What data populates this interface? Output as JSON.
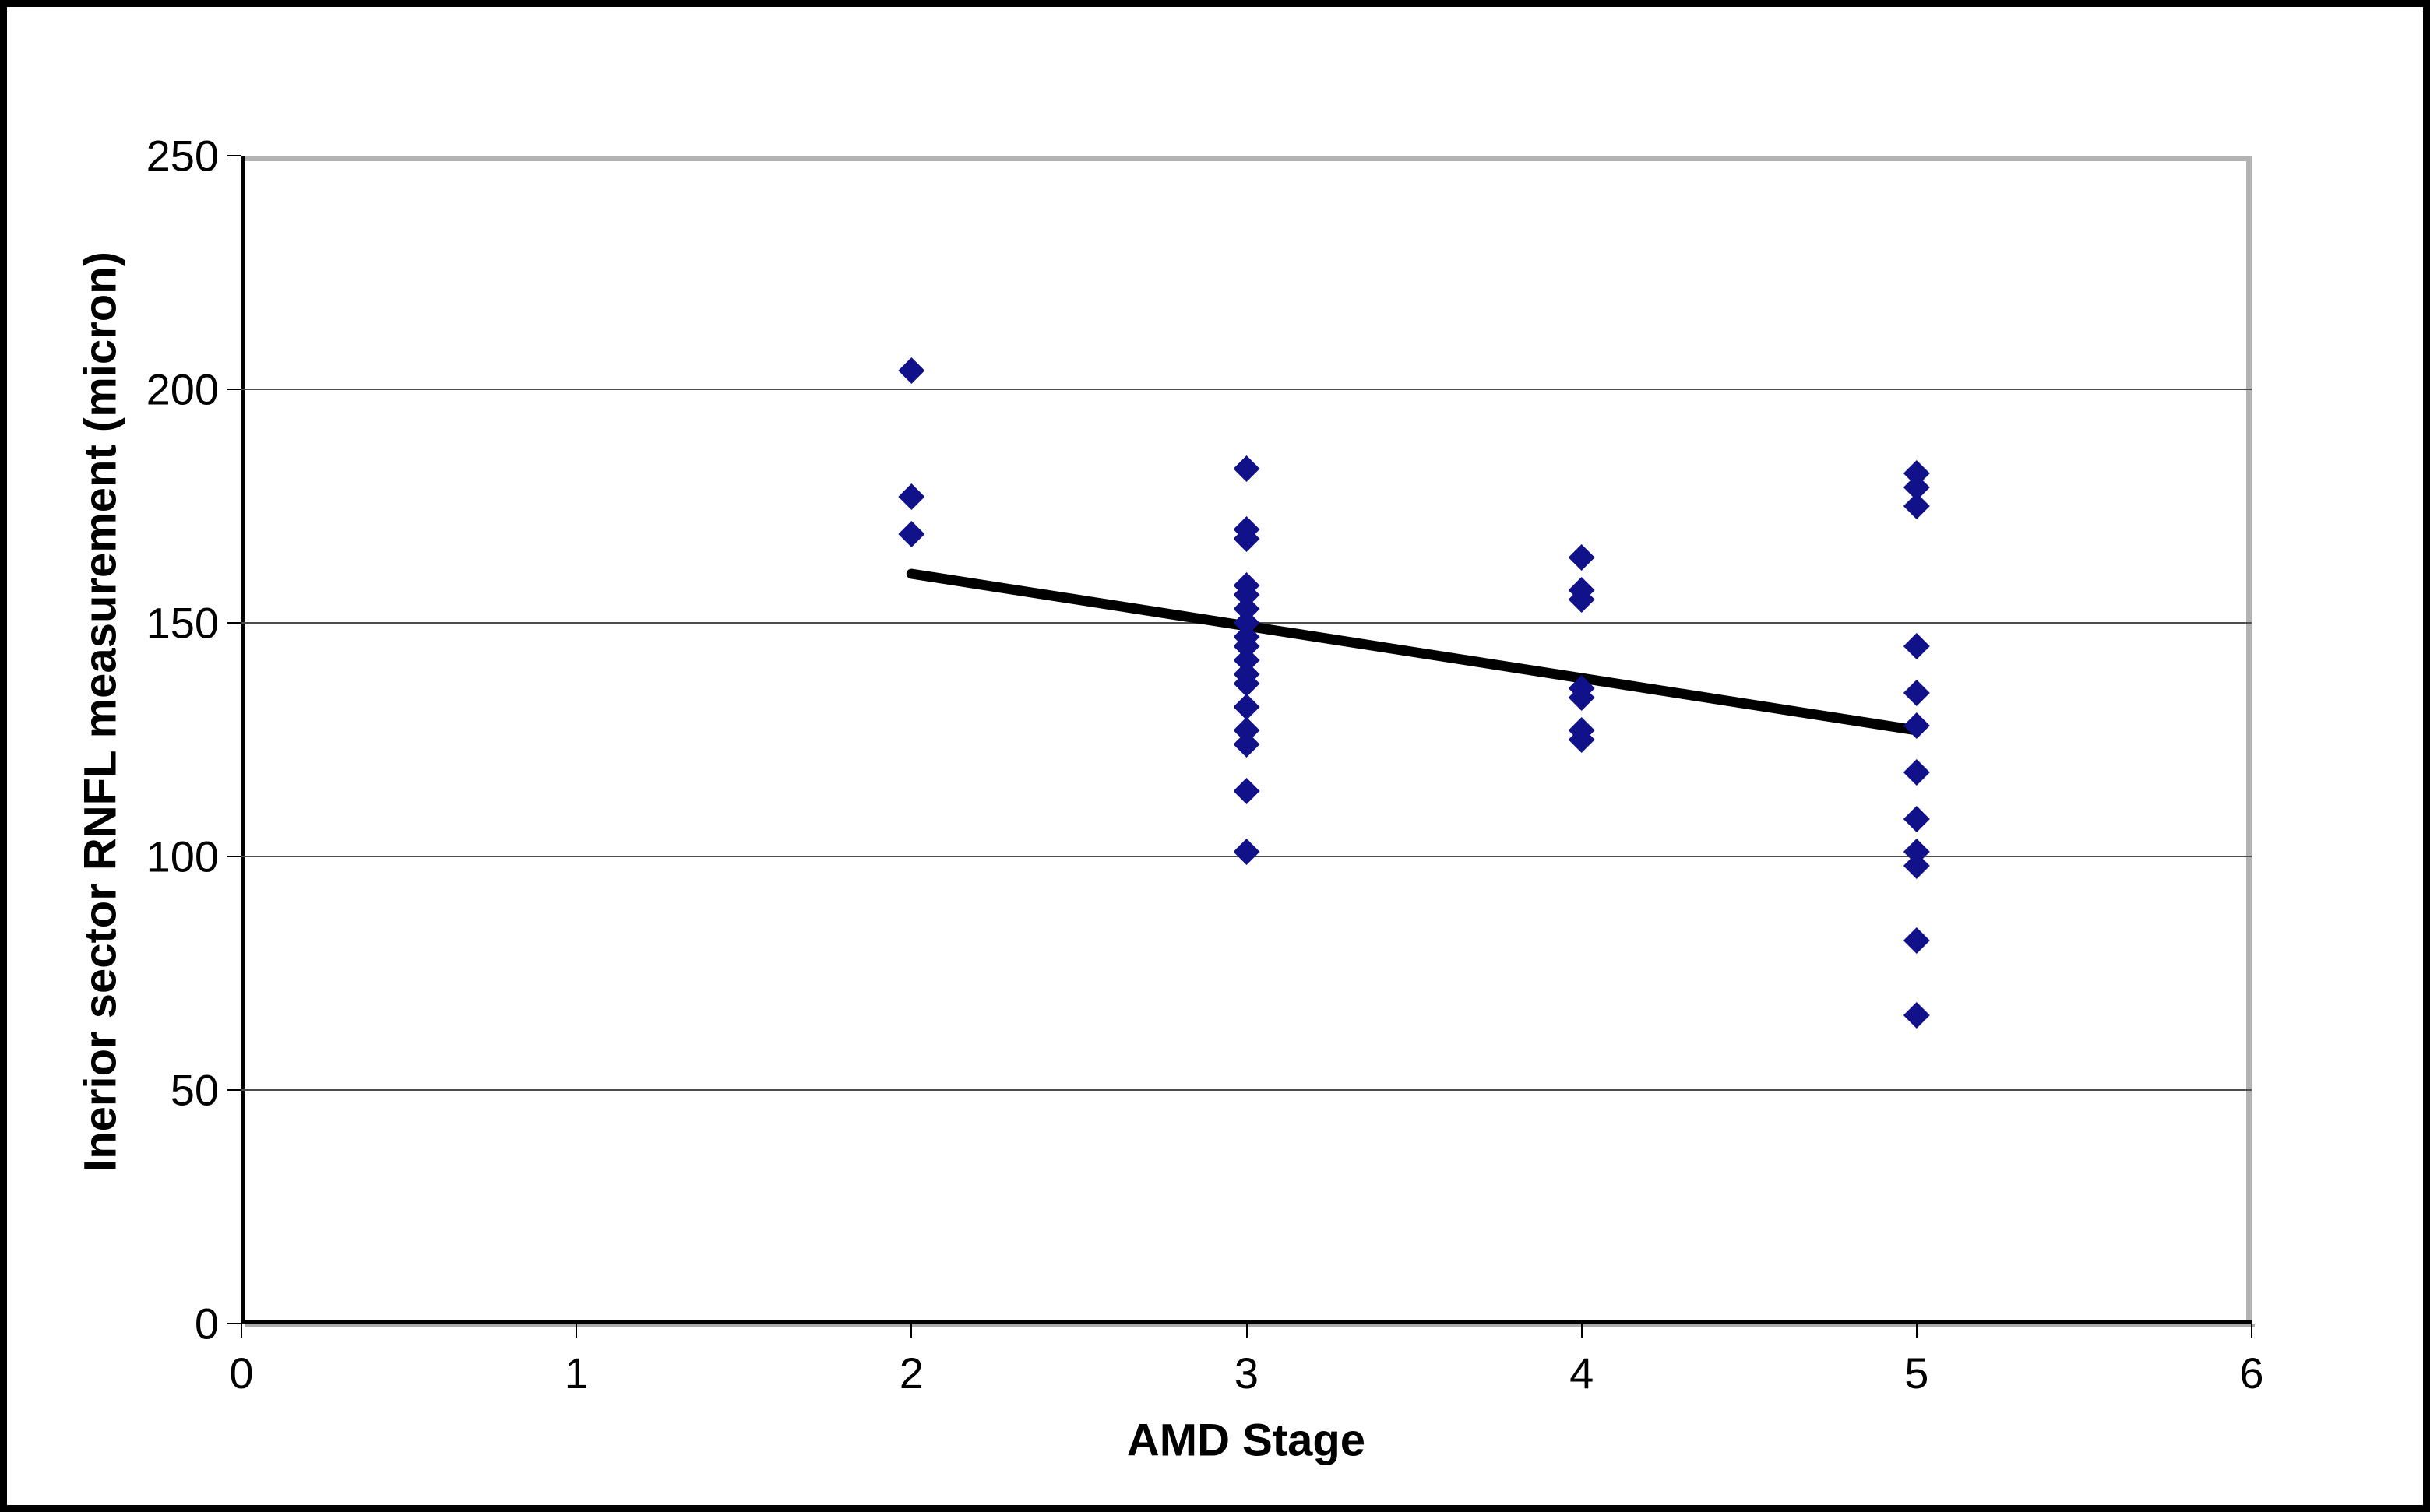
{
  "chart_data": {
    "type": "scatter",
    "title": "",
    "xlabel": "AMD Stage",
    "ylabel": "Inerior sector RNFL measurement (micron)",
    "xlim": [
      0,
      6
    ],
    "ylim": [
      0,
      250
    ],
    "x_ticks": [
      0,
      1,
      2,
      3,
      4,
      5,
      6
    ],
    "y_ticks": [
      0,
      50,
      100,
      150,
      200,
      250
    ],
    "grid": "horizontal",
    "legend": "none",
    "marker": "diamond",
    "marker_color": "#11118a",
    "gridline_color": "#4d4d4d",
    "plot_border_color": "#b3b3b3",
    "axis_color": "#000000",
    "points": [
      [
        2,
        204
      ],
      [
        2,
        177
      ],
      [
        2,
        169
      ],
      [
        3,
        183
      ],
      [
        3,
        170
      ],
      [
        3,
        168
      ],
      [
        3,
        158
      ],
      [
        3,
        156
      ],
      [
        3,
        153
      ],
      [
        3,
        150
      ],
      [
        3,
        147
      ],
      [
        3,
        145
      ],
      [
        3,
        142
      ],
      [
        3,
        139
      ],
      [
        3,
        137
      ],
      [
        3,
        132
      ],
      [
        3,
        127
      ],
      [
        3,
        124
      ],
      [
        3,
        114
      ],
      [
        3,
        101
      ],
      [
        4,
        164
      ],
      [
        4,
        157
      ],
      [
        4,
        155
      ],
      [
        4,
        136
      ],
      [
        4,
        134
      ],
      [
        4,
        127
      ],
      [
        4,
        125
      ],
      [
        5,
        182
      ],
      [
        5,
        179
      ],
      [
        5,
        175
      ],
      [
        5,
        145
      ],
      [
        5,
        135
      ],
      [
        5,
        128
      ],
      [
        5,
        118
      ],
      [
        5,
        108
      ],
      [
        5,
        101
      ],
      [
        5,
        98
      ],
      [
        5,
        82
      ],
      [
        5,
        66
      ]
    ],
    "trendline": {
      "x1": 2,
      "y1": 160.5,
      "x2": 5,
      "y2": 127,
      "color": "#000000",
      "width": 13
    }
  }
}
